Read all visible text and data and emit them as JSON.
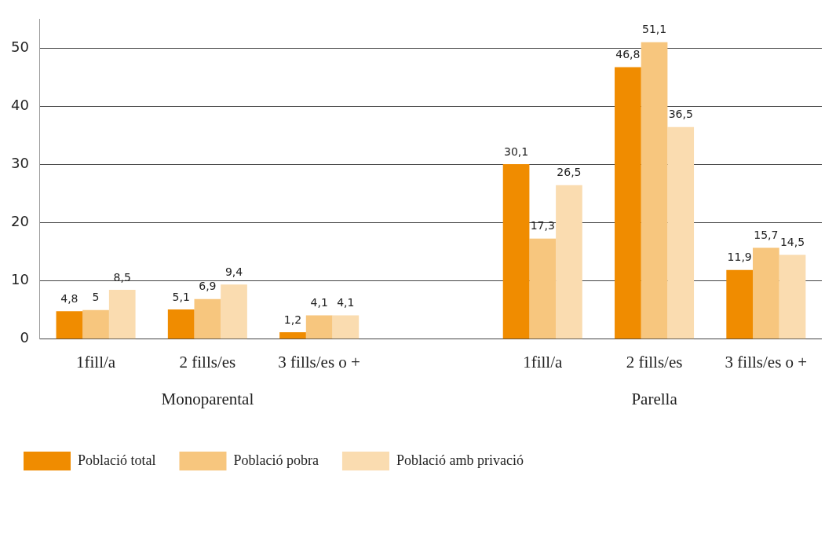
{
  "chart_data": {
    "type": "bar",
    "categories": [
      "1fill/a",
      "2 fills/es",
      "3 fills/es o +",
      null,
      "1fill/a",
      "2 fills/es",
      "3 fills/es o +"
    ],
    "series": [
      {
        "name": "Població total",
        "color": "#f08c00",
        "values": [
          4.8,
          5.1,
          1.2,
          null,
          30.1,
          46.8,
          11.9
        ],
        "value_labels": [
          "4,8",
          "5,1",
          "1,2",
          null,
          "30,1",
          "46,8",
          "11,9"
        ]
      },
      {
        "name": "Població pobra",
        "color": "#f7c67e",
        "values": [
          5,
          6.9,
          4.1,
          null,
          17.3,
          51.1,
          15.7
        ],
        "value_labels": [
          "5",
          "6,9",
          "4,1",
          null,
          "17,3",
          "51,1",
          "15,7"
        ]
      },
      {
        "name": "Població amb privació",
        "color": "#fadcb0",
        "values": [
          8.5,
          9.4,
          4.1,
          null,
          26.5,
          36.5,
          14.5
        ],
        "value_labels": [
          "8,5",
          "9,4",
          "4,1",
          null,
          "26,5",
          "36,5",
          "14,5"
        ]
      }
    ],
    "ylim": [
      0,
      55
    ],
    "yticks": [
      0,
      10,
      20,
      30,
      40,
      50
    ],
    "grid": "y",
    "legend": "bottom left",
    "data_labels": true,
    "annotations": [
      "Monoparental",
      "Parella"
    ]
  }
}
